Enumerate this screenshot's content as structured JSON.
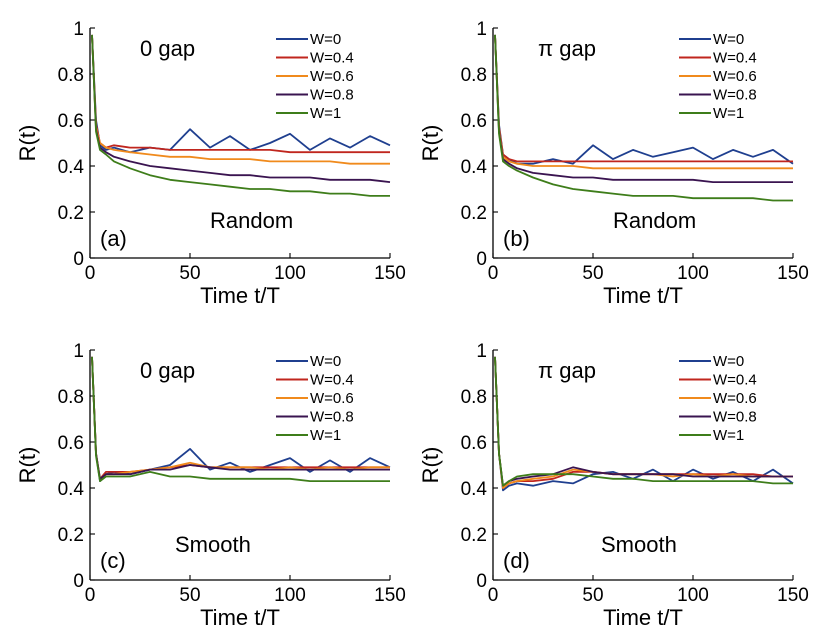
{
  "chart_data": [
    {
      "type": "line",
      "panel": "(a)",
      "annotations": [
        "0 gap",
        "Random",
        "(a)"
      ],
      "xlabel": "Time t/T",
      "ylabel": "R(t)",
      "xlim": [
        0,
        150
      ],
      "ylim": [
        0,
        1
      ],
      "xticks": [
        "0",
        "50",
        "100",
        "150"
      ],
      "yticks": [
        "0",
        "0.2",
        "0.4",
        "0.6",
        "0.8",
        "1"
      ],
      "grid": false,
      "legend_position": "top-right",
      "x": [
        1,
        3,
        5,
        8,
        12,
        20,
        30,
        40,
        50,
        60,
        70,
        80,
        90,
        100,
        110,
        120,
        130,
        140,
        150
      ],
      "series": [
        {
          "name": "W=0",
          "color": "#1f3f8f",
          "values": [
            0.97,
            0.6,
            0.49,
            0.47,
            0.48,
            0.46,
            0.48,
            0.47,
            0.56,
            0.48,
            0.53,
            0.47,
            0.5,
            0.54,
            0.47,
            0.52,
            0.48,
            0.53,
            0.49
          ]
        },
        {
          "name": "W=0.4",
          "color": "#c0261e",
          "values": [
            0.97,
            0.58,
            0.5,
            0.48,
            0.49,
            0.48,
            0.48,
            0.47,
            0.47,
            0.47,
            0.47,
            0.47,
            0.47,
            0.46,
            0.46,
            0.46,
            0.46,
            0.46,
            0.46
          ]
        },
        {
          "name": "W=0.6",
          "color": "#f08a1c",
          "values": [
            0.97,
            0.57,
            0.5,
            0.48,
            0.47,
            0.46,
            0.45,
            0.44,
            0.44,
            0.43,
            0.43,
            0.43,
            0.42,
            0.42,
            0.42,
            0.42,
            0.41,
            0.41,
            0.41
          ]
        },
        {
          "name": "W=0.8",
          "color": "#3a1450",
          "values": [
            0.97,
            0.56,
            0.48,
            0.46,
            0.44,
            0.42,
            0.4,
            0.39,
            0.38,
            0.37,
            0.36,
            0.36,
            0.35,
            0.35,
            0.35,
            0.34,
            0.34,
            0.34,
            0.33
          ]
        },
        {
          "name": "W=1",
          "color": "#3e7d1a",
          "values": [
            0.97,
            0.55,
            0.47,
            0.45,
            0.42,
            0.39,
            0.36,
            0.34,
            0.33,
            0.32,
            0.31,
            0.3,
            0.3,
            0.29,
            0.29,
            0.28,
            0.28,
            0.27,
            0.27
          ]
        }
      ]
    },
    {
      "type": "line",
      "panel": "(b)",
      "annotations": [
        "π gap",
        "Random",
        "(b)"
      ],
      "xlabel": "Time t/T",
      "ylabel": "R(t)",
      "xlim": [
        0,
        150
      ],
      "ylim": [
        0,
        1
      ],
      "xticks": [
        "0",
        "50",
        "100",
        "150"
      ],
      "yticks": [
        "0",
        "0.2",
        "0.4",
        "0.6",
        "0.8",
        "1"
      ],
      "grid": false,
      "legend_position": "top-right",
      "x": [
        1,
        3,
        5,
        8,
        12,
        20,
        30,
        40,
        50,
        60,
        70,
        80,
        90,
        100,
        110,
        120,
        130,
        140,
        150
      ],
      "series": [
        {
          "name": "W=0",
          "color": "#1f3f8f",
          "values": [
            0.97,
            0.58,
            0.45,
            0.43,
            0.41,
            0.41,
            0.43,
            0.41,
            0.49,
            0.43,
            0.47,
            0.44,
            0.46,
            0.48,
            0.43,
            0.47,
            0.44,
            0.47,
            0.41
          ]
        },
        {
          "name": "W=0.4",
          "color": "#c0261e",
          "values": [
            0.97,
            0.57,
            0.45,
            0.43,
            0.42,
            0.42,
            0.42,
            0.42,
            0.42,
            0.42,
            0.42,
            0.42,
            0.42,
            0.42,
            0.42,
            0.42,
            0.42,
            0.42,
            0.42
          ]
        },
        {
          "name": "W=0.6",
          "color": "#f08a1c",
          "values": [
            0.97,
            0.56,
            0.44,
            0.42,
            0.41,
            0.4,
            0.4,
            0.4,
            0.39,
            0.39,
            0.39,
            0.39,
            0.39,
            0.39,
            0.39,
            0.39,
            0.39,
            0.39,
            0.39
          ]
        },
        {
          "name": "W=0.8",
          "color": "#3a1450",
          "values": [
            0.97,
            0.55,
            0.43,
            0.41,
            0.39,
            0.37,
            0.36,
            0.35,
            0.35,
            0.34,
            0.34,
            0.34,
            0.34,
            0.34,
            0.33,
            0.33,
            0.33,
            0.33,
            0.33
          ]
        },
        {
          "name": "W=1",
          "color": "#3e7d1a",
          "values": [
            0.97,
            0.54,
            0.42,
            0.4,
            0.38,
            0.35,
            0.32,
            0.3,
            0.29,
            0.28,
            0.27,
            0.27,
            0.27,
            0.26,
            0.26,
            0.26,
            0.26,
            0.25,
            0.25
          ]
        }
      ]
    },
    {
      "type": "line",
      "panel": "(c)",
      "annotations": [
        "0 gap",
        "Smooth",
        "(c)"
      ],
      "xlabel": "Time t/T",
      "ylabel": "R(t)",
      "xlim": [
        0,
        150
      ],
      "ylim": [
        0,
        1
      ],
      "xticks": [
        "0",
        "50",
        "100",
        "150"
      ],
      "yticks": [
        "0",
        "0.2",
        "0.4",
        "0.6",
        "0.8",
        "1"
      ],
      "grid": false,
      "legend_position": "top-right",
      "x": [
        1,
        3,
        5,
        8,
        12,
        20,
        30,
        40,
        50,
        60,
        70,
        80,
        90,
        100,
        110,
        120,
        130,
        140,
        150
      ],
      "series": [
        {
          "name": "W=0",
          "color": "#1f3f8f",
          "values": [
            0.97,
            0.55,
            0.43,
            0.46,
            0.47,
            0.46,
            0.48,
            0.5,
            0.57,
            0.48,
            0.51,
            0.47,
            0.5,
            0.53,
            0.47,
            0.52,
            0.47,
            0.53,
            0.49
          ]
        },
        {
          "name": "W=0.4",
          "color": "#c0261e",
          "values": [
            0.97,
            0.55,
            0.44,
            0.47,
            0.47,
            0.47,
            0.48,
            0.49,
            0.5,
            0.49,
            0.49,
            0.49,
            0.49,
            0.49,
            0.49,
            0.49,
            0.49,
            0.49,
            0.49
          ]
        },
        {
          "name": "W=0.6",
          "color": "#f08a1c",
          "values": [
            0.97,
            0.55,
            0.44,
            0.46,
            0.46,
            0.47,
            0.48,
            0.49,
            0.51,
            0.49,
            0.49,
            0.49,
            0.48,
            0.49,
            0.48,
            0.49,
            0.48,
            0.49,
            0.49
          ]
        },
        {
          "name": "W=0.8",
          "color": "#3a1450",
          "values": [
            0.97,
            0.55,
            0.44,
            0.46,
            0.46,
            0.46,
            0.48,
            0.48,
            0.5,
            0.49,
            0.48,
            0.48,
            0.48,
            0.48,
            0.48,
            0.48,
            0.48,
            0.48,
            0.48
          ]
        },
        {
          "name": "W=1",
          "color": "#3e7d1a",
          "values": [
            0.97,
            0.54,
            0.43,
            0.45,
            0.45,
            0.45,
            0.47,
            0.45,
            0.45,
            0.44,
            0.44,
            0.44,
            0.44,
            0.44,
            0.43,
            0.43,
            0.43,
            0.43,
            0.43
          ]
        }
      ]
    },
    {
      "type": "line",
      "panel": "(d)",
      "annotations": [
        "π gap",
        "Smooth",
        "(d)"
      ],
      "xlabel": "Time t/T",
      "ylabel": "R(t)",
      "xlim": [
        0,
        150
      ],
      "ylim": [
        0,
        1
      ],
      "xticks": [
        "0",
        "50",
        "100",
        "150"
      ],
      "yticks": [
        "0",
        "0.2",
        "0.4",
        "0.6",
        "0.8",
        "1"
      ],
      "grid": false,
      "legend_position": "top-right",
      "x": [
        1,
        3,
        5,
        8,
        12,
        20,
        30,
        40,
        50,
        60,
        70,
        80,
        90,
        100,
        110,
        120,
        130,
        140,
        150
      ],
      "series": [
        {
          "name": "W=0",
          "color": "#1f3f8f",
          "values": [
            0.97,
            0.55,
            0.39,
            0.41,
            0.42,
            0.41,
            0.43,
            0.42,
            0.46,
            0.47,
            0.44,
            0.48,
            0.43,
            0.48,
            0.44,
            0.47,
            0.43,
            0.48,
            0.42
          ]
        },
        {
          "name": "W=0.4",
          "color": "#c0261e",
          "values": [
            0.97,
            0.55,
            0.4,
            0.42,
            0.43,
            0.43,
            0.44,
            0.47,
            0.47,
            0.46,
            0.46,
            0.46,
            0.46,
            0.46,
            0.46,
            0.46,
            0.46,
            0.45,
            0.45
          ]
        },
        {
          "name": "W=0.6",
          "color": "#f08a1c",
          "values": [
            0.97,
            0.55,
            0.4,
            0.42,
            0.43,
            0.44,
            0.45,
            0.48,
            0.47,
            0.46,
            0.46,
            0.46,
            0.45,
            0.46,
            0.45,
            0.46,
            0.45,
            0.45,
            0.45
          ]
        },
        {
          "name": "W=0.8",
          "color": "#3a1450",
          "values": [
            0.97,
            0.55,
            0.41,
            0.43,
            0.44,
            0.45,
            0.46,
            0.49,
            0.47,
            0.46,
            0.46,
            0.46,
            0.46,
            0.45,
            0.45,
            0.45,
            0.45,
            0.45,
            0.45
          ]
        },
        {
          "name": "W=1",
          "color": "#3e7d1a",
          "values": [
            0.97,
            0.55,
            0.41,
            0.43,
            0.45,
            0.46,
            0.46,
            0.46,
            0.45,
            0.44,
            0.44,
            0.43,
            0.43,
            0.43,
            0.43,
            0.43,
            0.43,
            0.42,
            0.42
          ]
        }
      ]
    }
  ]
}
